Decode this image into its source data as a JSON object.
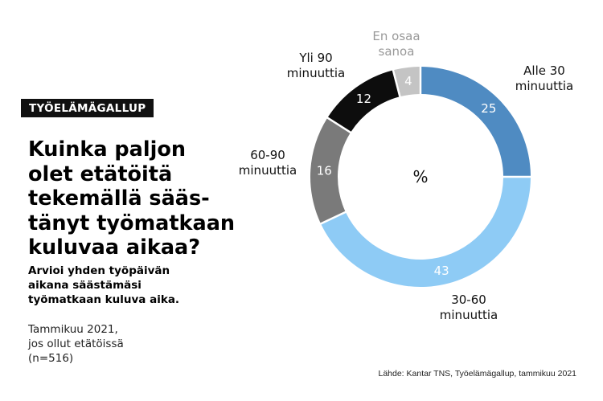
{
  "tag": "TYÖELÄMÄGALLUP",
  "title_lines": [
    "Kuinka paljon",
    "olet etätöitä",
    "tekemällä sääs-",
    "tänyt työmatkaan",
    "kuluvaa aikaa?"
  ],
  "subtitle_lines": [
    "Arvioi yhden työpäivän",
    "aikana säästämäsi",
    "työmatkaan kuluva aika."
  ],
  "note_lines": [
    "Tammikuu 2021,",
    "jos ollut etätöissä",
    "(n=516)"
  ],
  "source": "Lähde: Kantar TNS, Työelämägallup, tammikuu 2021",
  "chart_data": {
    "type": "pie",
    "donut": true,
    "center_label": "%",
    "slices": [
      {
        "label": [
          "Alle 30",
          "minuuttia"
        ],
        "value": 25,
        "color": "#4f8bc2",
        "text_color": "#ffffff",
        "label_color": "#111111"
      },
      {
        "label": [
          "30-60",
          "minuuttia"
        ],
        "value": 43,
        "color": "#8ecbf5",
        "text_color": "#ffffff",
        "label_color": "#111111"
      },
      {
        "label": [
          "60-90",
          "minuuttia"
        ],
        "value": 16,
        "color": "#7a7a7a",
        "text_color": "#ffffff",
        "label_color": "#111111"
      },
      {
        "label": [
          "Yli 90",
          "minuuttia"
        ],
        "value": 12,
        "color": "#0d0d0d",
        "text_color": "#ffffff",
        "label_color": "#111111"
      },
      {
        "label": [
          "En osaa",
          "sanoa"
        ],
        "value": 4,
        "color": "#c4c4c4",
        "text_color": "#ffffff",
        "label_color": "#999999"
      }
    ]
  }
}
